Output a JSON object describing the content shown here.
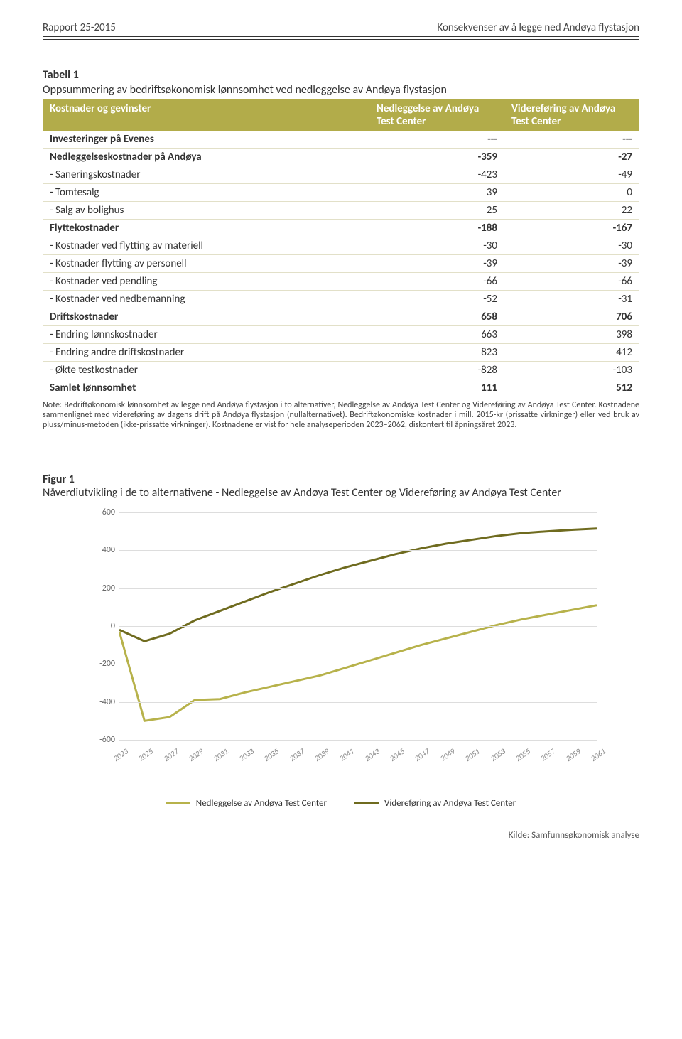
{
  "header": {
    "left": "Rapport 25-2015",
    "right": "Konsekvenser av å legge ned Andøya flystasjon"
  },
  "table": {
    "title": "Tabell 1",
    "caption": "Oppsummering av bedriftsøkonomisk lønnsomhet ved nedleggelse av Andøya flystasjon",
    "columns": [
      "Kostnader og gevinster",
      "Nedleggelse av Andøya Test Center",
      "Videreføring av Andøya Test Center"
    ],
    "rows": [
      {
        "label": "Investeringer på Evenes",
        "c1": "---",
        "c2": "---",
        "bold": true
      },
      {
        "label": "Nedleggelseskostnader på Andøya",
        "c1": "-359",
        "c2": "-27",
        "bold": true
      },
      {
        "label": "- Saneringskostnader",
        "c1": "-423",
        "c2": "-49",
        "bold": false
      },
      {
        "label": "- Tomtesalg",
        "c1": "39",
        "c2": "0",
        "bold": false
      },
      {
        "label": "- Salg av bolighus",
        "c1": "25",
        "c2": "22",
        "bold": false
      },
      {
        "label": "Flyttekostnader",
        "c1": "-188",
        "c2": "-167",
        "bold": true
      },
      {
        "label": "- Kostnader ved flytting av materiell",
        "c1": "-30",
        "c2": "-30",
        "bold": false
      },
      {
        "label": "- Kostnader flytting av personell",
        "c1": "-39",
        "c2": "-39",
        "bold": false
      },
      {
        "label": "- Kostnader ved pendling",
        "c1": "-66",
        "c2": "-66",
        "bold": false
      },
      {
        "label": "- Kostnader ved nedbemanning",
        "c1": "-52",
        "c2": "-31",
        "bold": false
      },
      {
        "label": "Driftskostnader",
        "c1": "658",
        "c2": "706",
        "bold": true
      },
      {
        "label": "- Endring lønnskostnader",
        "c1": "663",
        "c2": "398",
        "bold": false
      },
      {
        "label": "- Endring andre driftskostnader",
        "c1": "823",
        "c2": "412",
        "bold": false
      },
      {
        "label": "- Økte testkostnader",
        "c1": "-828",
        "c2": "-103",
        "bold": false
      },
      {
        "label": "Samlet lønnsomhet",
        "c1": "111",
        "c2": "512",
        "bold": true
      }
    ],
    "note": "Note: Bedriftøkonomisk lønnsomhet av legge ned Andøya flystasjon i to alternativer, Nedleggelse av Andøya Test Center og Videreføring av Andøya Test Center. Kostnadene sammenlignet med videreføring av dagens drift på Andøya flystasjon (nullalternativet). Bedriftøkonomiske kostnader i mill. 2015-kr (prissatte virkninger) eller ved bruk av pluss/minus-metoden (ikke-prissatte virkninger). Kostnadene er vist for hele analyseperioden 2023–2062, diskontert til åpningsåret 2023."
  },
  "figure": {
    "title": "Figur 1",
    "caption": "Nåverdiutvikling i de to alternativene - Nedleggelse av Andøya Test Center og Videreføring av Andøya Test Center",
    "chart": {
      "type": "line",
      "x_labels": [
        "2023",
        "2025",
        "2027",
        "2029",
        "2031",
        "2033",
        "2035",
        "2037",
        "2039",
        "2041",
        "2043",
        "2045",
        "2047",
        "2049",
        "2051",
        "2053",
        "2055",
        "2057",
        "2059",
        "2061"
      ],
      "ylim": [
        -600,
        600
      ],
      "ytick_step": 200,
      "series": [
        {
          "name": "Nedleggelse av Andøya Test Center",
          "color": "#b7b24b",
          "values": [
            -30,
            -500,
            -480,
            -390,
            -385,
            -350,
            -320,
            -290,
            -260,
            -220,
            -180,
            -140,
            -100,
            -65,
            -30,
            5,
            35,
            60,
            85,
            110
          ]
        },
        {
          "name": "Videreføring av Andøya Test Center",
          "color": "#6f6b1f",
          "values": [
            -20,
            -80,
            -40,
            30,
            80,
            130,
            180,
            225,
            270,
            310,
            345,
            380,
            410,
            435,
            455,
            475,
            490,
            500,
            508,
            515
          ]
        }
      ],
      "line_width": 3,
      "grid_color": "#dddddd",
      "background_color": "#ffffff"
    },
    "legend": {
      "s1": "Nedleggelse av Andøya Test Center",
      "s2": "Videreføring av Andøya Test Center"
    }
  },
  "footer": {
    "source": "Kilde: Samfunnsøkonomisk analyse"
  }
}
